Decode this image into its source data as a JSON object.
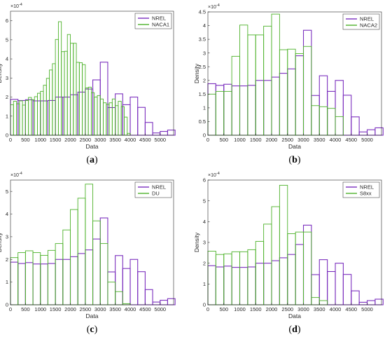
{
  "chart_data": [
    {
      "type": "bar",
      "caption_open": "(",
      "caption_letter": "a",
      "caption_close": ")",
      "xlabel": "Data",
      "ylabel": "Density",
      "exponent_base": "×10",
      "exponent_power": "-4",
      "xlim": [
        0,
        5450
      ],
      "ylim": [
        0,
        6.5
      ],
      "xticks": [
        0,
        500,
        1000,
        1500,
        2000,
        2500,
        3000,
        3500,
        4000,
        4500,
        5000
      ],
      "yticks": [
        0,
        1,
        2,
        3,
        4,
        5,
        6
      ],
      "legend_position": "top-right",
      "series": [
        {
          "name": "NREL",
          "color": "#7b2fbe",
          "bin_width": 250,
          "x": [
            0,
            250,
            500,
            750,
            1000,
            1250,
            1500,
            1750,
            2000,
            2250,
            2500,
            2750,
            3000,
            3250,
            3500,
            3750,
            4000,
            4250,
            4500,
            4750,
            5000,
            5250
          ],
          "values": [
            1.88,
            1.82,
            1.86,
            1.8,
            1.8,
            1.82,
            2.0,
            2.0,
            2.12,
            2.26,
            2.42,
            2.9,
            3.83,
            1.45,
            2.17,
            1.6,
            2.0,
            1.46,
            0.67,
            0.12,
            0.2,
            0.27
          ]
        },
        {
          "name": "NACA1",
          "color": "#4db22a",
          "bin_width": 100,
          "x": [
            0,
            100,
            200,
            300,
            400,
            500,
            600,
            700,
            800,
            900,
            1000,
            1100,
            1200,
            1300,
            1400,
            1500,
            1600,
            1700,
            1800,
            1900,
            2000,
            2100,
            2200,
            2300,
            2400,
            2500,
            2600,
            2700,
            2800,
            2900,
            3000,
            3100,
            3200,
            3300,
            3400,
            3500,
            3600,
            3700,
            3800,
            3900,
            4000
          ],
          "values": [
            1.6,
            1.78,
            1.65,
            1.8,
            1.58,
            1.82,
            1.98,
            1.85,
            2.02,
            2.2,
            2.3,
            2.62,
            2.98,
            3.42,
            3.75,
            5.02,
            5.95,
            4.38,
            4.4,
            5.28,
            4.82,
            4.82,
            3.82,
            3.8,
            3.7,
            2.48,
            2.52,
            2.23,
            2.0,
            2.08,
            1.9,
            1.7,
            1.62,
            1.7,
            1.9,
            1.55,
            1.78,
            1.5,
            0.95,
            0.1,
            0.0
          ]
        }
      ]
    },
    {
      "type": "bar",
      "caption_open": "(",
      "caption_letter": "b",
      "caption_close": ")",
      "xlabel": "Data",
      "ylabel": "Density",
      "exponent_base": "×10",
      "exponent_power": "-4",
      "xlim": [
        0,
        5450
      ],
      "ylim": [
        0,
        4.5
      ],
      "xticks": [
        0,
        500,
        1000,
        1500,
        2000,
        2500,
        3000,
        3500,
        4000,
        4500,
        5000
      ],
      "yticks": [
        0,
        0.5,
        1,
        1.5,
        2,
        2.5,
        3,
        3.5,
        4,
        4.5
      ],
      "legend_position": "top-right",
      "series": [
        {
          "name": "NREL",
          "color": "#7b2fbe",
          "bin_width": 250,
          "x": [
            0,
            250,
            500,
            750,
            1000,
            1250,
            1500,
            1750,
            2000,
            2250,
            2500,
            2750,
            3000,
            3250,
            3500,
            3750,
            4000,
            4250,
            4500,
            4750,
            5000,
            5250
          ],
          "values": [
            1.88,
            1.82,
            1.86,
            1.8,
            1.8,
            1.82,
            2.0,
            2.0,
            2.12,
            2.26,
            2.42,
            2.9,
            3.83,
            1.45,
            2.17,
            1.6,
            2.0,
            1.46,
            0.67,
            0.12,
            0.2,
            0.27
          ]
        },
        {
          "name": "NACA2",
          "color": "#4db22a",
          "bin_width": 250,
          "x": [
            0,
            250,
            500,
            750,
            1000,
            1250,
            1500,
            1750,
            2000,
            2250,
            2500,
            2750,
            3000,
            3250,
            3500,
            3750,
            4000,
            4250,
            4500
          ],
          "values": [
            1.5,
            1.6,
            1.6,
            2.88,
            4.02,
            3.66,
            3.66,
            3.98,
            4.42,
            3.12,
            3.14,
            2.98,
            3.24,
            1.08,
            1.04,
            0.98,
            0.68,
            0.0,
            0.0
          ]
        }
      ]
    },
    {
      "type": "bar",
      "caption_open": "(",
      "caption_letter": "c",
      "caption_close": ")",
      "xlabel": "Data",
      "ylabel": "Density",
      "exponent_base": "×10",
      "exponent_power": "-4",
      "xlim": [
        0,
        5450
      ],
      "ylim": [
        0,
        5.5
      ],
      "xticks": [
        0,
        500,
        1000,
        1500,
        2000,
        2500,
        3000,
        3500,
        4000,
        4500,
        5000
      ],
      "yticks": [
        0,
        1,
        2,
        3,
        4,
        5
      ],
      "legend_position": "top-right",
      "series": [
        {
          "name": "NREL",
          "color": "#7b2fbe",
          "bin_width": 250,
          "x": [
            0,
            250,
            500,
            750,
            1000,
            1250,
            1500,
            1750,
            2000,
            2250,
            2500,
            2750,
            3000,
            3250,
            3500,
            3750,
            4000,
            4250,
            4500,
            4750,
            5000,
            5250
          ],
          "values": [
            1.88,
            1.82,
            1.86,
            1.8,
            1.8,
            1.82,
            2.0,
            2.0,
            2.12,
            2.26,
            2.42,
            2.9,
            3.83,
            1.45,
            2.17,
            1.6,
            2.0,
            1.46,
            0.67,
            0.12,
            0.2,
            0.27
          ]
        },
        {
          "name": "DU",
          "color": "#4db22a",
          "bin_width": 250,
          "x": [
            0,
            250,
            500,
            750,
            1000,
            1250,
            1500,
            1750,
            2000,
            2250,
            2500,
            2750,
            3000,
            3250,
            3500,
            3750,
            4000
          ],
          "values": [
            2.08,
            2.3,
            2.38,
            2.3,
            2.18,
            2.4,
            2.7,
            3.3,
            4.2,
            4.7,
            5.32,
            3.7,
            2.7,
            1.0,
            0.58,
            0.05,
            0.0
          ]
        }
      ]
    },
    {
      "type": "bar",
      "caption_open": "(",
      "caption_letter": "d",
      "caption_close": ")",
      "xlabel": "Data",
      "ylabel": "Density",
      "exponent_base": "×10",
      "exponent_power": "-4",
      "xlim": [
        0,
        5450
      ],
      "ylim": [
        0,
        6
      ],
      "xticks": [
        0,
        500,
        1000,
        1500,
        2000,
        2500,
        3000,
        3500,
        4000,
        4500,
        5000
      ],
      "yticks": [
        0,
        1,
        2,
        3,
        4,
        5,
        6
      ],
      "legend_position": "top-right",
      "series": [
        {
          "name": "NREL",
          "color": "#7b2fbe",
          "bin_width": 250,
          "x": [
            0,
            250,
            500,
            750,
            1000,
            1250,
            1500,
            1750,
            2000,
            2250,
            2500,
            2750,
            3000,
            3250,
            3500,
            3750,
            4000,
            4250,
            4500,
            4750,
            5000,
            5250
          ],
          "values": [
            1.88,
            1.82,
            1.86,
            1.8,
            1.8,
            1.82,
            2.0,
            2.0,
            2.12,
            2.26,
            2.42,
            2.9,
            3.83,
            1.45,
            2.17,
            1.6,
            2.0,
            1.46,
            0.67,
            0.12,
            0.2,
            0.27
          ]
        },
        {
          "name": "S8xx",
          "color": "#4db22a",
          "bin_width": 250,
          "x": [
            0,
            250,
            500,
            750,
            1000,
            1250,
            1500,
            1750,
            2000,
            2250,
            2500,
            2750,
            3000,
            3250,
            3500,
            3750,
            4000
          ],
          "values": [
            2.58,
            2.42,
            2.45,
            2.55,
            2.55,
            2.65,
            3.05,
            3.88,
            4.72,
            5.75,
            3.42,
            3.5,
            3.5,
            0.35,
            0.2,
            0.0,
            0.0
          ]
        }
      ]
    }
  ]
}
